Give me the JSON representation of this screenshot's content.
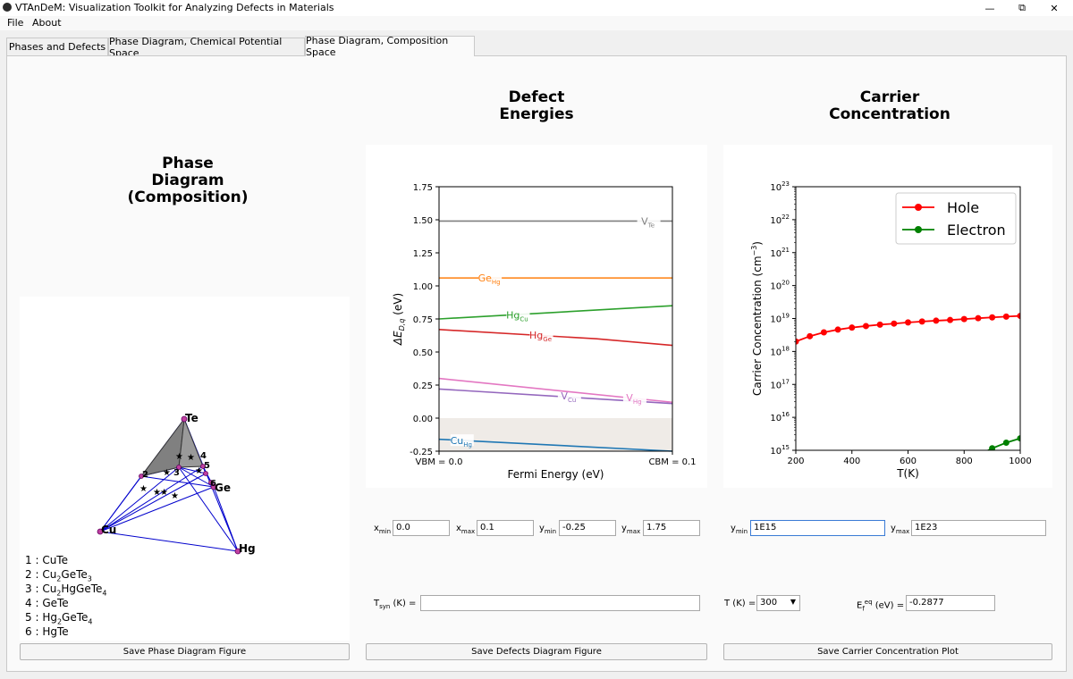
{
  "window": {
    "title": "VTAnDeM: Visualization Toolkit for Analyzing Defects in Materials",
    "minimize_glyph": "—",
    "maximize_glyph": "⧉",
    "close_glyph": "✕"
  },
  "menu": {
    "items": [
      "File",
      "About"
    ]
  },
  "tabs": [
    {
      "label": "Phases and Defects",
      "active": false
    },
    {
      "label": "Phase Diagram, Chemical Potential Space",
      "active": false
    },
    {
      "label": "Phase Diagram, Composition Space",
      "active": true
    }
  ],
  "phase_panel": {
    "title_lines": [
      "Phase",
      "Diagram",
      "(Composition)"
    ],
    "vertex_labels": {
      "te": "Te",
      "cu": "Cu",
      "hg": "Hg",
      "ge": "Ge"
    },
    "point_labels": [
      "2",
      "3",
      "4",
      "5",
      "6"
    ],
    "legend": [
      {
        "num": "1",
        "parts": [
          {
            "t": "CuTe"
          }
        ]
      },
      {
        "num": "2",
        "parts": [
          {
            "t": "Cu"
          },
          {
            "s": "2"
          },
          {
            "t": "GeTe"
          },
          {
            "s": "3"
          }
        ]
      },
      {
        "num": "3",
        "parts": [
          {
            "t": "Cu"
          },
          {
            "s": "2"
          },
          {
            "t": "HgGeTe"
          },
          {
            "s": "4"
          }
        ]
      },
      {
        "num": "4",
        "parts": [
          {
            "t": "GeTe"
          }
        ]
      },
      {
        "num": "5",
        "parts": [
          {
            "t": "Hg"
          },
          {
            "s": "2"
          },
          {
            "t": "GeTe"
          },
          {
            "s": "4"
          }
        ]
      },
      {
        "num": "6",
        "parts": [
          {
            "t": "HgTe"
          }
        ]
      }
    ],
    "save_button": "Save Phase Diagram Figure"
  },
  "defect_panel": {
    "title_lines": [
      "Defect",
      "Energies"
    ],
    "xmin_label": "x",
    "xmin_sub": "min",
    "xmin_value": "0.0",
    "xmax_label": "x",
    "xmax_sub": "max",
    "xmax_value": "0.1",
    "ymin_label": "y",
    "ymin_sub": "min",
    "ymin_value": "-0.25",
    "ymax_label": "y",
    "ymax_sub": "max",
    "ymax_value": "1.75",
    "tsyn_label": "T",
    "tsyn_sub": "syn",
    "tsyn_suffix": " (K) =",
    "tsyn_value": "",
    "save_button": "Save Defects Diagram Figure"
  },
  "carrier_panel": {
    "title_lines": [
      "Carrier",
      "Concentration"
    ],
    "ymin_label": "y",
    "ymin_sub": "min",
    "ymin_value": "1E15",
    "ymax_label": "y",
    "ymax_sub": "max",
    "ymax_value": "1E23",
    "t_label": "T (K) =",
    "t_value": "300",
    "ef_label_main": "E",
    "ef_sub": "f",
    "ef_sup": "eq",
    "ef_suffix": " (eV) =",
    "ef_value": "-0.2877",
    "save_button": "Save Carrier Concentration Plot"
  },
  "chart_data": [
    {
      "type": "line",
      "xlabel": "Fermi Energy (eV)",
      "ylabel": "ΔE",
      "ylabel_sub": "D,q",
      "ylabel_suffix": " (eV)",
      "xlim": [
        0.0,
        0.1
      ],
      "ylim": [
        -0.25,
        1.75
      ],
      "xtick_labels": [
        "VBM = 0.0",
        "CBM = 0.1"
      ],
      "yticks": [
        -0.25,
        0.0,
        0.25,
        0.5,
        0.75,
        1.0,
        1.25,
        1.5,
        1.75
      ],
      "ytick_labels": [
        "-0.25",
        "0.00",
        "0.25",
        "0.50",
        "0.75",
        "1.00",
        "1.25",
        "1.50",
        "1.75"
      ],
      "shaded_region": {
        "y_from": -0.25,
        "y_to": 0.0,
        "color": "#efebe7"
      },
      "series": [
        {
          "name": "V",
          "sub": "Te",
          "color": "#7f7f7f",
          "x": [
            0.0,
            0.1
          ],
          "y": [
            1.49,
            1.49
          ],
          "label_at": [
            0.0895,
            1.49
          ]
        },
        {
          "name": "Ge",
          "sub": "Hg",
          "color": "#ff7f0e",
          "x": [
            0.0,
            0.1
          ],
          "y": [
            1.06,
            1.06
          ],
          "label_at": [
            0.0215,
            1.06
          ]
        },
        {
          "name": "Hg",
          "sub": "Cu",
          "color": "#2ca02c",
          "x": [
            0.0,
            0.1
          ],
          "y": [
            0.75,
            0.85
          ],
          "label_at": [
            0.0335,
            0.78
          ]
        },
        {
          "name": "Hg",
          "sub": "Ge",
          "color": "#d62728",
          "x": [
            0.0,
            0.0675,
            0.1
          ],
          "y": [
            0.67,
            0.6,
            0.55
          ],
          "label_at": [
            0.0435,
            0.63
          ]
        },
        {
          "name": "V",
          "sub": "Cu",
          "color": "#9467bd",
          "x": [
            0.0,
            0.1
          ],
          "y": [
            0.22,
            0.11
          ],
          "label_at": [
            0.0555,
            0.17
          ]
        },
        {
          "name": "V",
          "sub": "Hg",
          "color": "#e377c2",
          "x": [
            0.0,
            0.1
          ],
          "y": [
            0.3,
            0.12
          ],
          "label_at": [
            0.0835,
            0.155
          ]
        },
        {
          "name": "Cu",
          "sub": "Hg",
          "color": "#1f77b4",
          "x": [
            0.0,
            0.1
          ],
          "y": [
            -0.16,
            -0.25
          ],
          "label_at": [
            0.0095,
            -0.17
          ]
        }
      ]
    },
    {
      "type": "line",
      "xlabel": "T(K)",
      "ylabel": "Carrier Concentration (cm",
      "ylabel_sup": "−3",
      "ylabel_suffix": ")",
      "yscale": "log",
      "xlim": [
        200,
        1000
      ],
      "ylim": [
        1000000000000000.0,
        1e+23
      ],
      "xticks": [
        200,
        400,
        600,
        800,
        1000
      ],
      "xtick_labels": [
        "200",
        "400",
        "600",
        "800",
        "1000"
      ],
      "ytick_exponents": [
        15,
        16,
        17,
        18,
        19,
        20,
        21,
        22,
        23
      ],
      "legend_position": "top-right",
      "series": [
        {
          "name": "Hole",
          "color": "#ff0000",
          "x": [
            200,
            250,
            300,
            350,
            400,
            450,
            500,
            550,
            600,
            650,
            700,
            750,
            800,
            850,
            900,
            950,
            1000
          ],
          "y": [
            2e+18,
            2.9e+18,
            3.8e+18,
            4.6e+18,
            5.3e+18,
            5.9e+18,
            6.5e+18,
            7e+18,
            7.6e+18,
            8.1e+18,
            8.6e+18,
            9e+18,
            9.6e+18,
            1.02e+19,
            1.08e+19,
            1.14e+19,
            1.2e+19
          ]
        },
        {
          "name": "Electron",
          "color": "#008000",
          "x": [
            850,
            900,
            950,
            1000
          ],
          "y": [
            700000000000000.0,
            1150000000000000.0,
            1700000000000000.0,
            2300000000000000.0
          ]
        }
      ]
    }
  ]
}
